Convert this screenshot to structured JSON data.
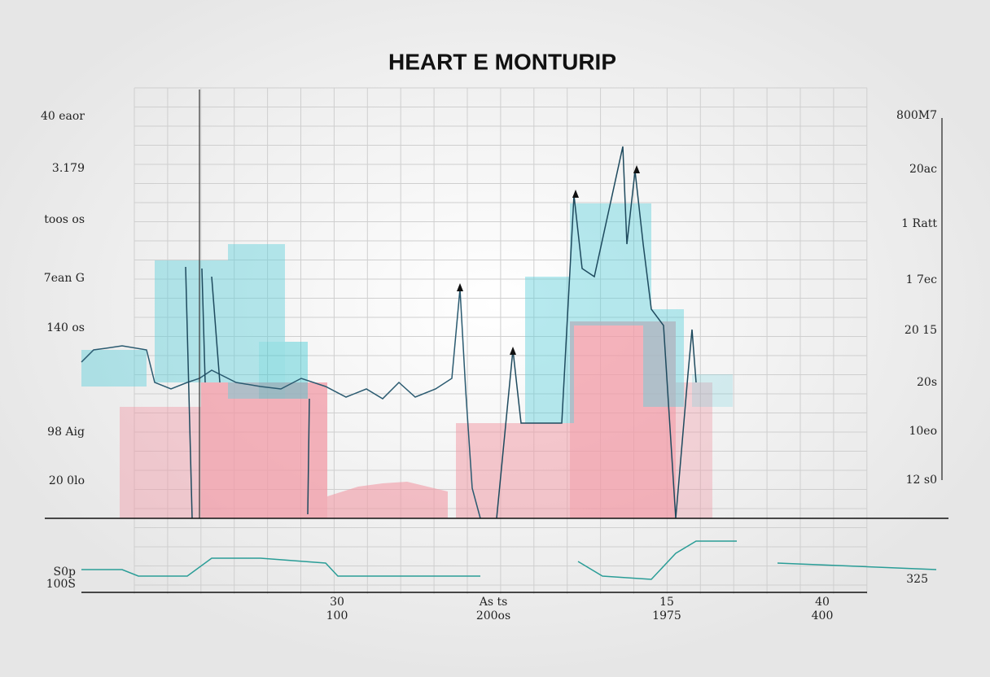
{
  "header": {
    "title": "HEART E MONTURIP"
  },
  "left_labels": [
    "40 eaor",
    "3.179",
    "toos os",
    "7ean G",
    "140 os",
    "98 Aig",
    "20 0lo"
  ],
  "right_labels": [
    "800M7",
    "20ac",
    "1 Ratt",
    "1 7ec",
    "20 15",
    "20s",
    "10eo",
    "12 s0"
  ],
  "lower_left_labels": [
    "S0p",
    "100S"
  ],
  "lower_right_label": "325",
  "bottom_labels": [
    {
      "top": "30",
      "bottom": "100"
    },
    {
      "top": "As ts",
      "bottom": "200os"
    },
    {
      "top": "15",
      "bottom": "1975"
    },
    {
      "top": "40",
      "bottom": "400"
    }
  ]
}
